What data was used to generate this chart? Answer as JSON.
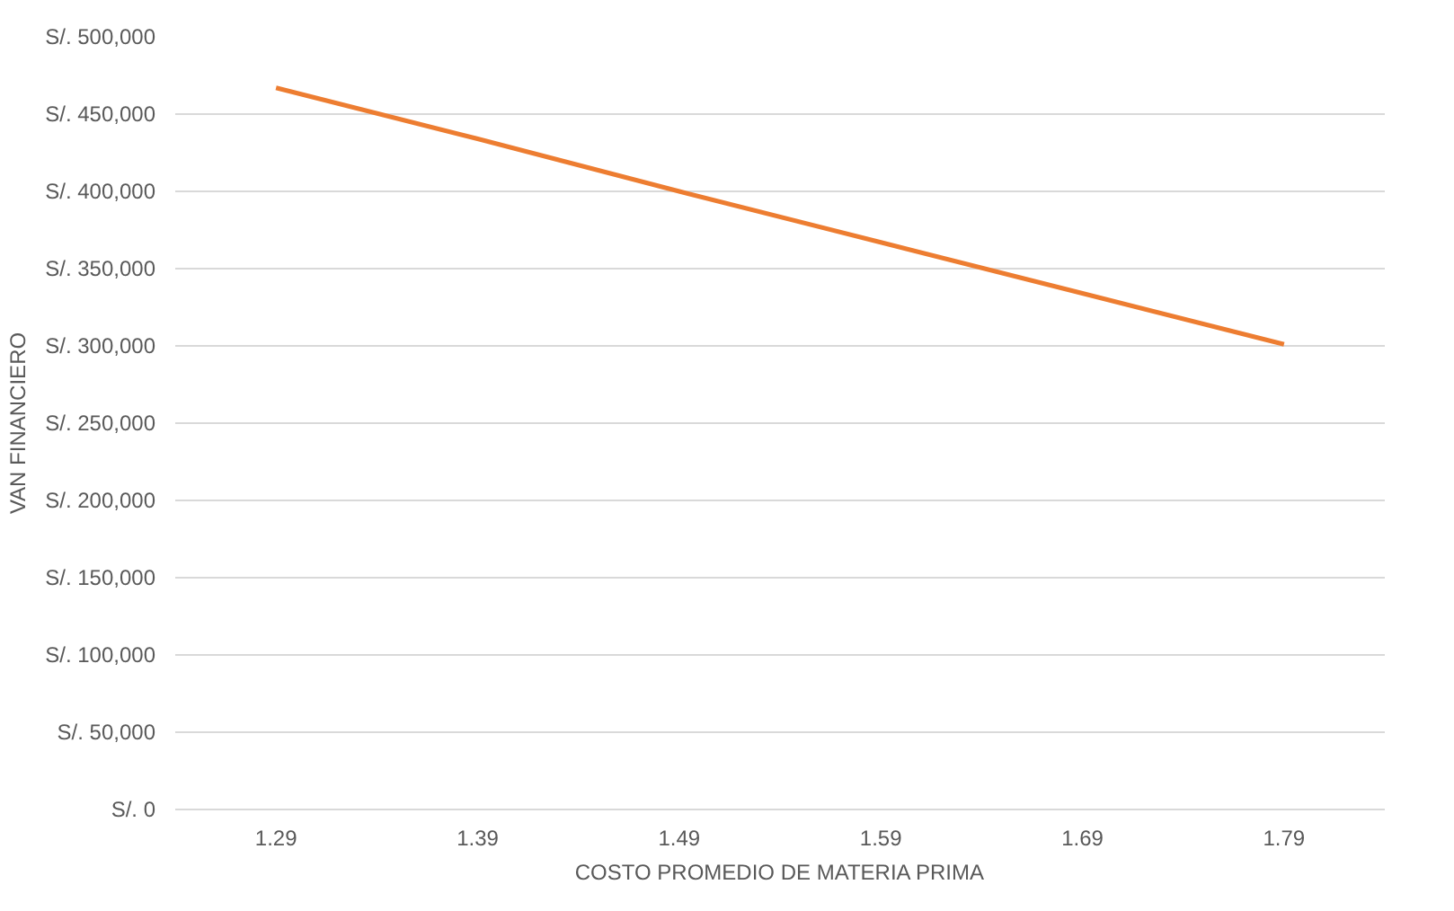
{
  "chart_data": {
    "type": "line",
    "xlabel": "COSTO PROMEDIO DE MATERIA PRIMA",
    "ylabel": "VAN FINANCIERO",
    "categories": [
      "1.29",
      "1.39",
      "1.49",
      "1.59",
      "1.69",
      "1.79"
    ],
    "series": [
      {
        "color": "#ed7d31",
        "values": [
          467000,
          434000,
          400000,
          367000,
          334000,
          301000
        ]
      }
    ],
    "ylim": [
      0,
      500000
    ],
    "yticks": [
      {
        "value": 0,
        "label": "S/. 0"
      },
      {
        "value": 50000,
        "label": "S/. 50,000"
      },
      {
        "value": 100000,
        "label": "S/. 100,000"
      },
      {
        "value": 150000,
        "label": "S/. 150,000"
      },
      {
        "value": 200000,
        "label": "S/. 200,000"
      },
      {
        "value": 250000,
        "label": "S/. 250,000"
      },
      {
        "value": 300000,
        "label": "S/. 300,000"
      },
      {
        "value": 350000,
        "label": "S/. 350,000"
      },
      {
        "value": 400000,
        "label": "S/. 400,000"
      },
      {
        "value": 450000,
        "label": "S/. 450,000"
      },
      {
        "value": 500000,
        "label": "S/. 500,000"
      }
    ],
    "grid": "y",
    "marker": "none",
    "line_style": "solid"
  }
}
